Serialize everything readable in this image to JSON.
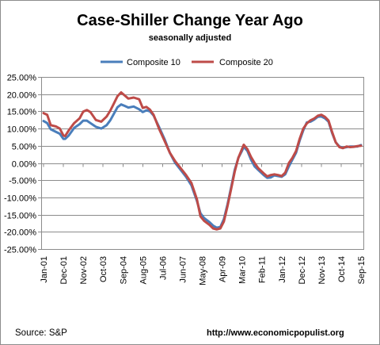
{
  "chart_data": {
    "type": "line",
    "title": "Case-Shiller Change Year Ago",
    "subtitle": "seasonally adjusted",
    "xlabel": "",
    "ylabel": "",
    "ylim": [
      -25,
      25
    ],
    "y_tick_step": 5,
    "y_tick_labels": [
      "25.00%",
      "20.00%",
      "15.00%",
      "10.00%",
      "5.00%",
      "0.00%",
      "-5.00%",
      "-10.00%",
      "-15.00%",
      "-20.00%",
      "-25.00%"
    ],
    "x_range": [
      "2001-01",
      "2015-09"
    ],
    "x_tick_labels": [
      "Jan-01",
      "Dec-01",
      "Nov-02",
      "Oct-03",
      "Sep-04",
      "Aug-05",
      "Jul-06",
      "Jun-07",
      "May-08",
      "Apr-09",
      "Mar-10",
      "Feb-11",
      "Jan-12",
      "Dec-12",
      "Nov-13",
      "Oct-14",
      "Sep-15"
    ],
    "grid": true,
    "legend_position": "top-center",
    "series": [
      {
        "name": "Composite 10",
        "color": "#4a7ebb",
        "points": [
          [
            "2001-01",
            12.2
          ],
          [
            "2001-03",
            11.6
          ],
          [
            "2001-05",
            9.8
          ],
          [
            "2001-08",
            9.0
          ],
          [
            "2001-10",
            8.5
          ],
          [
            "2001-12",
            7.0
          ],
          [
            "2002-01",
            7.0
          ],
          [
            "2002-03",
            8.0
          ],
          [
            "2002-06",
            10.2
          ],
          [
            "2002-09",
            11.3
          ],
          [
            "2002-11",
            12.3
          ],
          [
            "2003-01",
            12.3
          ],
          [
            "2003-03",
            11.6
          ],
          [
            "2003-06",
            10.5
          ],
          [
            "2003-09",
            10.0
          ],
          [
            "2003-12",
            11.0
          ],
          [
            "2004-02",
            12.4
          ],
          [
            "2004-04",
            14.3
          ],
          [
            "2004-06",
            16.2
          ],
          [
            "2004-08",
            17.0
          ],
          [
            "2004-10",
            16.6
          ],
          [
            "2004-12",
            16.1
          ],
          [
            "2005-03",
            16.4
          ],
          [
            "2005-06",
            15.6
          ],
          [
            "2005-08",
            14.8
          ],
          [
            "2005-10",
            15.3
          ],
          [
            "2005-12",
            15.0
          ],
          [
            "2006-02",
            13.8
          ],
          [
            "2006-05",
            10.5
          ],
          [
            "2006-08",
            7.0
          ],
          [
            "2006-11",
            3.0
          ],
          [
            "2007-02",
            0.0
          ],
          [
            "2007-05",
            -2.0
          ],
          [
            "2007-08",
            -4.0
          ],
          [
            "2007-11",
            -6.5
          ],
          [
            "2008-02",
            -11.0
          ],
          [
            "2008-04",
            -14.6
          ],
          [
            "2008-06",
            -16.0
          ],
          [
            "2008-09",
            -17.2
          ],
          [
            "2008-11",
            -18.2
          ],
          [
            "2009-01",
            -18.8
          ],
          [
            "2009-03",
            -18.6
          ],
          [
            "2009-05",
            -16.3
          ],
          [
            "2009-07",
            -12.0
          ],
          [
            "2009-09",
            -7.0
          ],
          [
            "2009-11",
            -2.0
          ],
          [
            "2010-01",
            1.5
          ],
          [
            "2010-03",
            3.5
          ],
          [
            "2010-04",
            4.7
          ],
          [
            "2010-06",
            3.5
          ],
          [
            "2010-08",
            1.0
          ],
          [
            "2010-10",
            -1.0
          ],
          [
            "2010-12",
            -2.0
          ],
          [
            "2011-03",
            -3.5
          ],
          [
            "2011-05",
            -4.3
          ],
          [
            "2011-07",
            -4.2
          ],
          [
            "2011-09",
            -3.6
          ],
          [
            "2011-11",
            -3.8
          ],
          [
            "2012-01",
            -4.0
          ],
          [
            "2012-03",
            -3.3
          ],
          [
            "2012-05",
            -1.0
          ],
          [
            "2012-07",
            1.0
          ],
          [
            "2012-09",
            3.0
          ],
          [
            "2012-11",
            6.5
          ],
          [
            "2013-01",
            9.5
          ],
          [
            "2013-03",
            11.8
          ],
          [
            "2013-05",
            12.0
          ],
          [
            "2013-07",
            12.6
          ],
          [
            "2013-09",
            13.4
          ],
          [
            "2013-11",
            13.5
          ],
          [
            "2014-01",
            13.0
          ],
          [
            "2014-03",
            12.0
          ],
          [
            "2014-05",
            8.7
          ],
          [
            "2014-07",
            6.0
          ],
          [
            "2014-09",
            4.8
          ],
          [
            "2014-11",
            4.4
          ],
          [
            "2015-01",
            4.6
          ],
          [
            "2015-03",
            4.8
          ],
          [
            "2015-05",
            4.8
          ],
          [
            "2015-07",
            4.8
          ],
          [
            "2015-09",
            5.2
          ]
        ]
      },
      {
        "name": "Composite 20",
        "color": "#be4b48",
        "points": [
          [
            "2001-01",
            14.5
          ],
          [
            "2001-03",
            14.0
          ],
          [
            "2001-05",
            11.0
          ],
          [
            "2001-08",
            10.6
          ],
          [
            "2001-10",
            10.0
          ],
          [
            "2001-12",
            8.0
          ],
          [
            "2002-01",
            7.8
          ],
          [
            "2002-03",
            9.5
          ],
          [
            "2002-06",
            11.6
          ],
          [
            "2002-09",
            13.0
          ],
          [
            "2002-11",
            14.9
          ],
          [
            "2003-01",
            15.4
          ],
          [
            "2003-03",
            14.8
          ],
          [
            "2003-06",
            12.5
          ],
          [
            "2003-09",
            12.0
          ],
          [
            "2003-12",
            13.5
          ],
          [
            "2004-02",
            15.2
          ],
          [
            "2004-04",
            17.3
          ],
          [
            "2004-06",
            19.4
          ],
          [
            "2004-08",
            20.5
          ],
          [
            "2004-10",
            19.6
          ],
          [
            "2004-12",
            18.7
          ],
          [
            "2005-03",
            19.0
          ],
          [
            "2005-06",
            18.5
          ],
          [
            "2005-08",
            16.0
          ],
          [
            "2005-10",
            16.3
          ],
          [
            "2005-12",
            15.5
          ],
          [
            "2006-02",
            14.0
          ],
          [
            "2006-05",
            10.0
          ],
          [
            "2006-08",
            6.5
          ],
          [
            "2006-11",
            3.0
          ],
          [
            "2007-02",
            0.5
          ],
          [
            "2007-05",
            -1.5
          ],
          [
            "2007-08",
            -3.5
          ],
          [
            "2007-11",
            -5.8
          ],
          [
            "2008-02",
            -10.5
          ],
          [
            "2008-04",
            -15.5
          ],
          [
            "2008-06",
            -16.8
          ],
          [
            "2008-09",
            -18.0
          ],
          [
            "2008-11",
            -19.0
          ],
          [
            "2009-01",
            -19.3
          ],
          [
            "2009-03",
            -19.0
          ],
          [
            "2009-05",
            -17.0
          ],
          [
            "2009-07",
            -12.5
          ],
          [
            "2009-09",
            -7.5
          ],
          [
            "2009-11",
            -2.5
          ],
          [
            "2010-01",
            1.5
          ],
          [
            "2010-03",
            4.0
          ],
          [
            "2010-04",
            5.3
          ],
          [
            "2010-06",
            4.0
          ],
          [
            "2010-08",
            1.8
          ],
          [
            "2010-10",
            0.0
          ],
          [
            "2010-12",
            -1.5
          ],
          [
            "2011-03",
            -3.0
          ],
          [
            "2011-05",
            -3.9
          ],
          [
            "2011-07",
            -3.5
          ],
          [
            "2011-09",
            -3.3
          ],
          [
            "2011-11",
            -3.5
          ],
          [
            "2012-01",
            -3.8
          ],
          [
            "2012-03",
            -2.8
          ],
          [
            "2012-05",
            0.0
          ],
          [
            "2012-07",
            1.5
          ],
          [
            "2012-09",
            3.5
          ],
          [
            "2012-11",
            7.0
          ],
          [
            "2013-01",
            10.0
          ],
          [
            "2013-03",
            11.5
          ],
          [
            "2013-05",
            12.4
          ],
          [
            "2013-07",
            12.9
          ],
          [
            "2013-09",
            13.7
          ],
          [
            "2013-11",
            14.0
          ],
          [
            "2014-01",
            13.4
          ],
          [
            "2014-03",
            12.3
          ],
          [
            "2014-05",
            9.0
          ],
          [
            "2014-07",
            6.0
          ],
          [
            "2014-09",
            4.6
          ],
          [
            "2014-11",
            4.3
          ],
          [
            "2015-01",
            4.8
          ],
          [
            "2015-03",
            4.6
          ],
          [
            "2015-05",
            4.7
          ],
          [
            "2015-07",
            4.9
          ],
          [
            "2015-09",
            5.0
          ]
        ]
      }
    ]
  },
  "footer": {
    "source": "Source: S&P",
    "url": "http://www.economicpopulist.org"
  }
}
